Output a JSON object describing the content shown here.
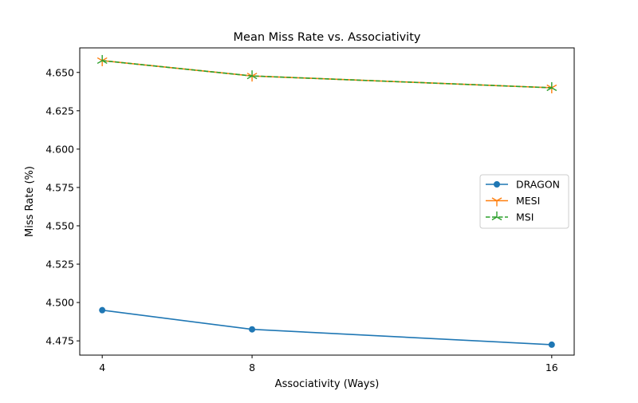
{
  "chart_data": {
    "type": "line",
    "title": "Mean Miss Rate vs. Associativity",
    "xlabel": "Associativity (Ways)",
    "ylabel": "Miss Rate (%)",
    "x": [
      4,
      8,
      16
    ],
    "x_ticks": [
      "4",
      "8",
      "16"
    ],
    "y_ticks": [
      "4.475",
      "4.500",
      "4.525",
      "4.550",
      "4.575",
      "4.600",
      "4.625",
      "4.650"
    ],
    "xlim": [
      3.4,
      16.6
    ],
    "ylim": [
      4.4657,
      4.666
    ],
    "grid": false,
    "legend_position": "center-right",
    "series": [
      {
        "name": "DRAGON",
        "values": [
          4.495,
          4.4825,
          4.4725
        ],
        "color": "#1f77b4",
        "marker": "circle",
        "line_style": "solid"
      },
      {
        "name": "MESI",
        "values": [
          4.6577,
          4.6477,
          4.64
        ],
        "color": "#ff7f0e",
        "marker": "tri-down",
        "line_style": "solid"
      },
      {
        "name": "MSI",
        "values": [
          4.6577,
          4.6477,
          4.64
        ],
        "color": "#2ca02c",
        "marker": "tri-up",
        "line_style": "dashed"
      }
    ]
  }
}
